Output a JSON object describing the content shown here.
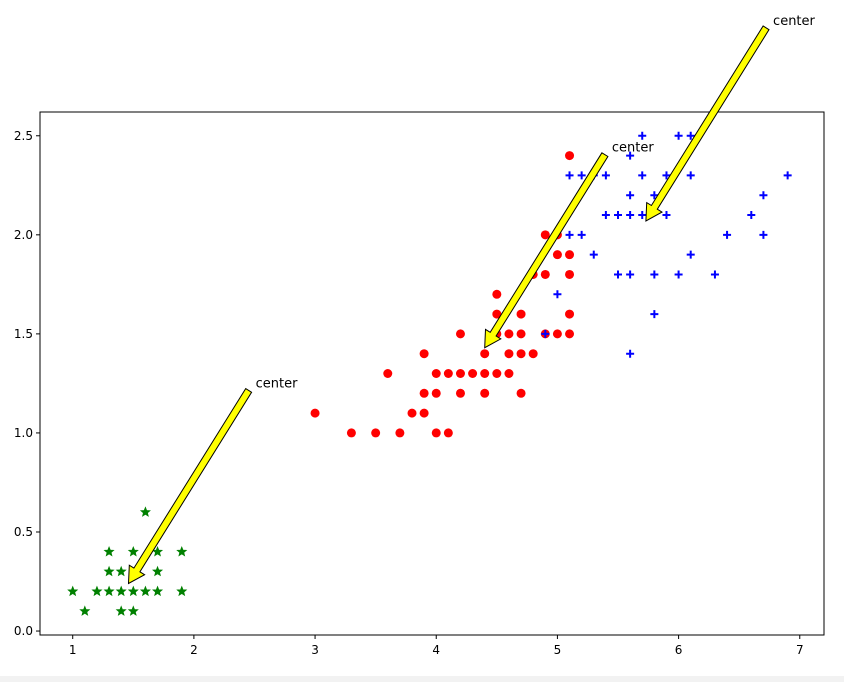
{
  "chart_data": {
    "type": "scatter",
    "title": "",
    "xlabel": "",
    "ylabel": "",
    "xlim": [
      0.73,
      7.2
    ],
    "ylim": [
      -0.02,
      2.62
    ],
    "xticks": [
      1,
      2,
      3,
      4,
      5,
      6,
      7
    ],
    "yticks": [
      0.0,
      0.5,
      1.0,
      1.5,
      2.0,
      2.5
    ],
    "ytick_labels": [
      "0.0",
      "0.5",
      "1.0",
      "1.5",
      "2.0",
      "2.5"
    ],
    "grid": false,
    "legend": "none",
    "series": [
      {
        "marker": "star",
        "color": "#008000",
        "points": [
          [
            1.0,
            0.2
          ],
          [
            1.1,
            0.1
          ],
          [
            1.2,
            0.2
          ],
          [
            1.3,
            0.2
          ],
          [
            1.3,
            0.3
          ],
          [
            1.3,
            0.4
          ],
          [
            1.4,
            0.1
          ],
          [
            1.4,
            0.2
          ],
          [
            1.4,
            0.3
          ],
          [
            1.5,
            0.1
          ],
          [
            1.5,
            0.2
          ],
          [
            1.5,
            0.4
          ],
          [
            1.6,
            0.2
          ],
          [
            1.6,
            0.6
          ],
          [
            1.7,
            0.2
          ],
          [
            1.7,
            0.3
          ],
          [
            1.7,
            0.4
          ],
          [
            1.9,
            0.2
          ],
          [
            1.9,
            0.4
          ]
        ]
      },
      {
        "marker": "circle",
        "color": "#ff0000",
        "points": [
          [
            3.0,
            1.1
          ],
          [
            3.3,
            1.0
          ],
          [
            3.5,
            1.0
          ],
          [
            3.6,
            1.3
          ],
          [
            3.7,
            1.0
          ],
          [
            3.8,
            1.1
          ],
          [
            3.9,
            1.1
          ],
          [
            3.9,
            1.2
          ],
          [
            3.9,
            1.4
          ],
          [
            4.0,
            1.0
          ],
          [
            4.0,
            1.2
          ],
          [
            4.0,
            1.3
          ],
          [
            4.1,
            1.0
          ],
          [
            4.1,
            1.3
          ],
          [
            4.2,
            1.2
          ],
          [
            4.2,
            1.3
          ],
          [
            4.2,
            1.5
          ],
          [
            4.3,
            1.3
          ],
          [
            4.4,
            1.2
          ],
          [
            4.4,
            1.3
          ],
          [
            4.4,
            1.4
          ],
          [
            4.5,
            1.3
          ],
          [
            4.5,
            1.5
          ],
          [
            4.5,
            1.6
          ],
          [
            4.5,
            1.7
          ],
          [
            4.6,
            1.3
          ],
          [
            4.6,
            1.4
          ],
          [
            4.6,
            1.5
          ],
          [
            4.7,
            1.2
          ],
          [
            4.7,
            1.4
          ],
          [
            4.7,
            1.5
          ],
          [
            4.7,
            1.6
          ],
          [
            4.8,
            1.4
          ],
          [
            4.8,
            1.8
          ],
          [
            4.9,
            1.5
          ],
          [
            4.9,
            1.8
          ],
          [
            4.9,
            2.0
          ],
          [
            5.0,
            1.5
          ],
          [
            5.0,
            1.9
          ],
          [
            5.0,
            2.0
          ],
          [
            5.1,
            1.5
          ],
          [
            5.1,
            1.6
          ],
          [
            5.1,
            1.8
          ],
          [
            5.1,
            1.9
          ],
          [
            5.1,
            2.4
          ]
        ]
      },
      {
        "marker": "plus",
        "color": "#0000ff",
        "points": [
          [
            4.9,
            1.5
          ],
          [
            5.0,
            1.7
          ],
          [
            5.1,
            2.0
          ],
          [
            5.1,
            2.3
          ],
          [
            5.2,
            2.0
          ],
          [
            5.2,
            2.3
          ],
          [
            5.3,
            1.9
          ],
          [
            5.3,
            2.3
          ],
          [
            5.4,
            2.1
          ],
          [
            5.4,
            2.3
          ],
          [
            5.5,
            1.8
          ],
          [
            5.5,
            2.1
          ],
          [
            5.6,
            1.4
          ],
          [
            5.6,
            1.8
          ],
          [
            5.6,
            2.1
          ],
          [
            5.6,
            2.2
          ],
          [
            5.6,
            2.4
          ],
          [
            5.7,
            2.1
          ],
          [
            5.7,
            2.3
          ],
          [
            5.7,
            2.5
          ],
          [
            5.8,
            1.6
          ],
          [
            5.8,
            1.8
          ],
          [
            5.8,
            2.2
          ],
          [
            5.9,
            2.1
          ],
          [
            5.9,
            2.3
          ],
          [
            6.0,
            1.8
          ],
          [
            6.0,
            2.5
          ],
          [
            6.1,
            1.9
          ],
          [
            6.1,
            2.3
          ],
          [
            6.1,
            2.5
          ],
          [
            6.3,
            1.8
          ],
          [
            6.4,
            2.0
          ],
          [
            6.6,
            2.1
          ],
          [
            6.7,
            2.0
          ],
          [
            6.7,
            2.2
          ],
          [
            6.9,
            2.3
          ]
        ]
      }
    ],
    "annotations": [
      {
        "text": "center",
        "xy": [
          1.46,
          0.24
        ],
        "xytext": [
          2.46,
          1.26
        ]
      },
      {
        "text": "center",
        "xy": [
          4.4,
          1.43
        ],
        "xytext": [
          5.4,
          2.45
        ]
      },
      {
        "text": "center",
        "xy": [
          5.73,
          2.07
        ],
        "xytext": [
          6.73,
          3.09
        ]
      }
    ],
    "arrow_color": "#ffff00"
  }
}
